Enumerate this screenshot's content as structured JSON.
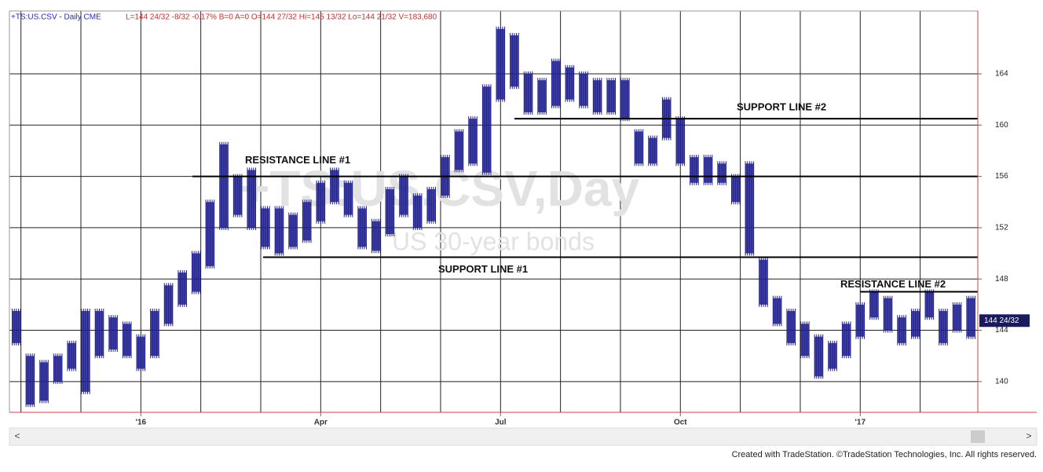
{
  "chart_data": {
    "type": "ohlc",
    "symbol": "+TS:US.CSV - Daily  CME",
    "quote": "L=144 24/32  -8/32  -0.17%  B=0  A=0  O=144 27/32  Hi=145 13/32  Lo=144 21/32  V=183,680",
    "watermark": "+TS:US.CSV,Day",
    "subtitle": "US 30-year bonds",
    "footer": "Created with TradeStation. ©TradeStation Technologies, Inc. All rights reserved.",
    "categories": [
      null,
      null,
      null,
      null,
      null,
      null,
      null,
      null,
      null,
      "'16",
      null,
      null,
      null,
      null,
      null,
      null,
      null,
      null,
      null,
      null,
      null,
      null,
      "Apr",
      null,
      null,
      null,
      null,
      null,
      null,
      null,
      null,
      null,
      null,
      null,
      null,
      "Jul",
      null,
      null,
      null,
      null,
      null,
      null,
      null,
      null,
      null,
      null,
      null,
      null,
      "Oct",
      null,
      null,
      null,
      null,
      null,
      null,
      null,
      null,
      null,
      null,
      null,
      null,
      "'17",
      null,
      null,
      null,
      null,
      null,
      null,
      null,
      null
    ],
    "series": [
      {
        "name": "High",
        "color": "#1f1f8f",
        "values": [
          145.5,
          142,
          141.5,
          142,
          143,
          145.5,
          145.5,
          145,
          144.5,
          143.5,
          145.5,
          147.5,
          148.5,
          150,
          154,
          158.5,
          156,
          156.5,
          153.5,
          153.5,
          153,
          154,
          155.5,
          156.5,
          155.5,
          153.5,
          152.5,
          155,
          156,
          154.5,
          155,
          157.5,
          159.5,
          160.5,
          163,
          167.5,
          167,
          164,
          163.5,
          165,
          164.5,
          164,
          163.5,
          163.5,
          163.5,
          159.5,
          159,
          162,
          160.5,
          157.5,
          157.5,
          157,
          156,
          157,
          149.5,
          146.5,
          145.5,
          144.5,
          143.5,
          143,
          144.5,
          146,
          147,
          146.5,
          145,
          145.5,
          147,
          145.5,
          146,
          146.5
        ]
      },
      {
        "name": "Low",
        "color": "#1f1f8f",
        "values": [
          143,
          138.2,
          138.5,
          140,
          141,
          139.2,
          142,
          142.5,
          142,
          141,
          142,
          144.5,
          146,
          147,
          149,
          152,
          153,
          152,
          150.5,
          150,
          150.5,
          151,
          152.5,
          154,
          153,
          150.5,
          150.2,
          151.5,
          153,
          152,
          152.5,
          154.5,
          156.5,
          157,
          156.3,
          162,
          163,
          161,
          161,
          161.5,
          162,
          161.5,
          161,
          161,
          160.5,
          157,
          157,
          159,
          157,
          155.5,
          155.5,
          155.5,
          154,
          150,
          146,
          144.5,
          143,
          142,
          140.4,
          141,
          142,
          143.5,
          145,
          144,
          143,
          143.5,
          145,
          143,
          144,
          143.5
        ]
      }
    ],
    "lines": [
      {
        "label": "RESISTANCE LINE #1",
        "value": 156
      },
      {
        "label": "SUPPORT LINE #2",
        "value": 160.5
      },
      {
        "label": "SUPPORT LINE #1",
        "value": 149.7
      },
      {
        "label": "RESISTANCE LINE #2",
        "value": 147
      }
    ],
    "last": {
      "value": 144.75,
      "label": "144 24/32"
    },
    "ylim": [
      137.6,
      168.9
    ],
    "yticks": [
      140,
      144,
      148,
      152,
      156,
      160,
      164
    ],
    "grid": true
  }
}
